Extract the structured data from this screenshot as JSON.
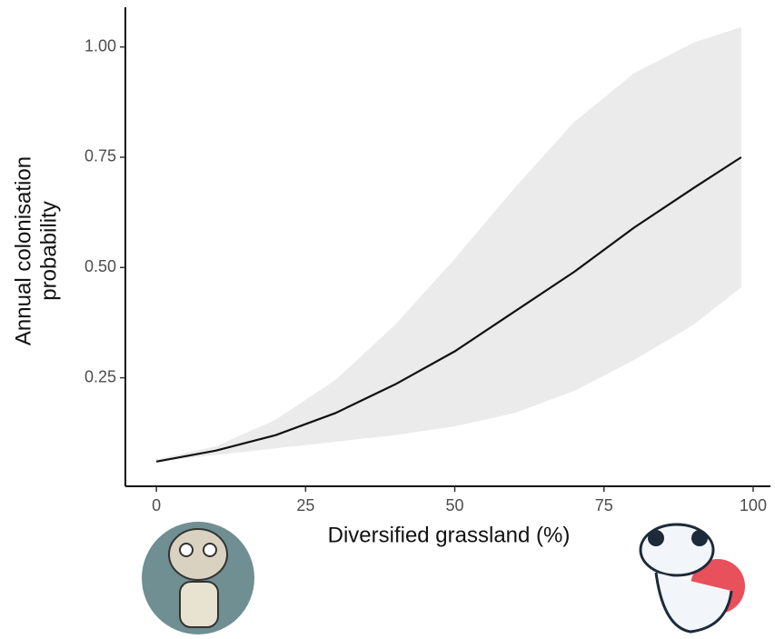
{
  "chart_data": {
    "type": "line",
    "xlabel": "Diversified grassland (%)",
    "ylabel": [
      "Annual colonisation",
      "probability"
    ],
    "x": [
      0,
      10,
      20,
      30,
      40,
      50,
      60,
      70,
      80,
      90,
      98
    ],
    "values": [
      0.06,
      0.085,
      0.12,
      0.17,
      0.235,
      0.31,
      0.4,
      0.49,
      0.59,
      0.68,
      0.75
    ],
    "lower": [
      0.06,
      0.075,
      0.09,
      0.105,
      0.12,
      0.14,
      0.17,
      0.22,
      0.29,
      0.37,
      0.455
    ],
    "upper": [
      0.065,
      0.095,
      0.155,
      0.245,
      0.37,
      0.52,
      0.68,
      0.83,
      0.94,
      1.01,
      1.045
    ],
    "color": "#111111",
    "band_color": "#ebebeb",
    "xlim": [
      -5.2,
      102.9
    ],
    "ylim": [
      0.004,
      1.09
    ],
    "xticks": [
      0,
      25,
      50,
      75,
      100
    ],
    "yticks": [
      0.25,
      {
        "value": 0.5,
        "label": "0.50"
      },
      0.75,
      {
        "value": 1,
        "label": "1.00"
      }
    ]
  }
}
